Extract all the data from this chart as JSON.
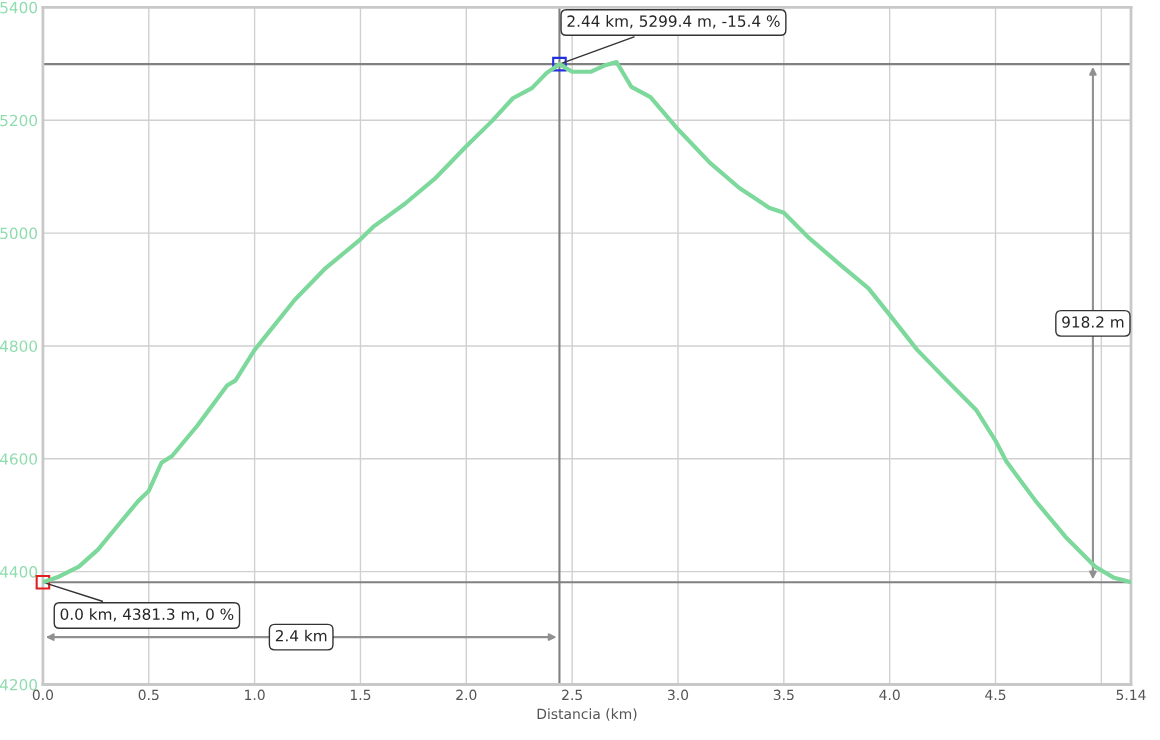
{
  "chart_data": {
    "type": "line",
    "xlabel": "Distancia (km)",
    "x": [
      0,
      0.075,
      0.17,
      0.26,
      0.35,
      0.45,
      0.5,
      0.56,
      0.61,
      0.73,
      0.87,
      0.91,
      1.0,
      1.19,
      1.33,
      1.5,
      1.56,
      1.71,
      1.85,
      2.0,
      2.12,
      2.22,
      2.31,
      2.38,
      2.44,
      2.5,
      2.59,
      2.66,
      2.71,
      2.78,
      2.87,
      3.0,
      3.15,
      3.29,
      3.43,
      3.5,
      3.62,
      3.76,
      3.9,
      4.0,
      4.13,
      4.27,
      4.41,
      4.5,
      4.55,
      4.69,
      4.83,
      4.97,
      5.06,
      5.14
    ],
    "series": [
      {
        "color": "#7dd89c",
        "values": [
          4381.3,
          4391,
          4409,
          4439,
          4480,
          4525,
          4543,
          4593,
          4605,
          4659,
          4730,
          4739,
          4793,
          4882,
          4936,
          4989,
          5011,
          5052,
          5096,
          5154,
          5198,
          5239,
          5257,
          5284,
          5299.4,
          5286,
          5286,
          5298,
          5303,
          5259,
          5241,
          5184,
          5125,
          5080,
          5045,
          5036,
          4991,
          4946,
          4902,
          4855,
          4793,
          4739,
          4686,
          4632,
          4596,
          4525,
          4462,
          4409,
          4389,
          4381.3
        ]
      }
    ],
    "xlim": [
      0,
      5.14
    ],
    "ylim": [
      4200,
      5400
    ],
    "xticks": [
      {
        "value": 0,
        "label": "0.0"
      },
      0.5,
      {
        "value": 1,
        "label": "1.0"
      },
      1.5,
      {
        "value": 2,
        "label": "2.0"
      },
      2.5,
      {
        "value": 3,
        "label": "3.0"
      },
      3.5,
      {
        "value": 4,
        "label": "4.0"
      },
      4.5,
      {
        "value": 5,
        "label": null
      },
      5.14
    ],
    "yticks": [
      4200,
      4400,
      4600,
      4800,
      5000,
      5200,
      5400
    ],
    "ref_lines": [
      {
        "axis": "y",
        "value": 5299.4,
        "color": "#808080"
      },
      {
        "axis": "y",
        "value": 4381.3,
        "color": "#808080"
      },
      {
        "axis": "x",
        "value": 2.44,
        "color": "#808080"
      }
    ],
    "annotations": [
      {
        "text": "0.0 km, 4381.3 m, 0 %",
        "x": 0,
        "y": 4381.3
      },
      {
        "text": "2.44 km, 5299.4 m, -15.4 %",
        "x": 2.44,
        "y": 5299.4
      },
      "918.2 m",
      "2.4 km"
    ],
    "grid": true,
    "marker": "none",
    "line_style": "solid"
  }
}
